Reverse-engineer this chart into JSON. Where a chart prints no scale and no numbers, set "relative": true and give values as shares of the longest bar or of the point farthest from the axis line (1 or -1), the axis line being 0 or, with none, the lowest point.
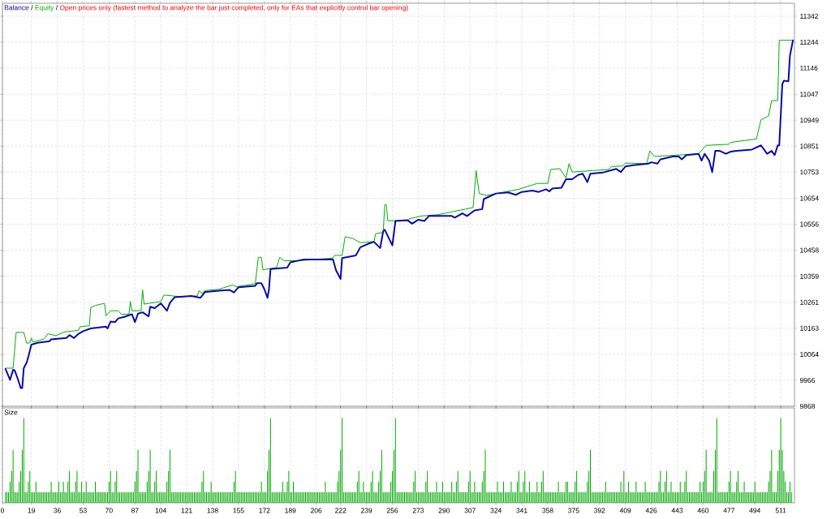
{
  "chart_data": [
    {
      "type": "line",
      "legend": "top left",
      "grid": true,
      "tick_labels": "y",
      "annotations": [
        "/",
        "/",
        "Open prices only (fastest method to analyze the bar just completed, only for EAs that explicitly control bar opening)"
      ],
      "xlim": [
        0,
        520
      ],
      "ylim": [
        9868,
        11391
      ],
      "xticks": [
        0,
        19,
        36,
        53,
        70,
        87,
        104,
        121,
        138,
        155,
        172,
        189,
        206,
        222,
        239,
        256,
        273,
        290,
        307,
        324,
        341,
        358,
        375,
        392,
        409,
        426,
        443,
        460,
        477,
        494,
        511
      ],
      "yticks": [
        9868,
        9966,
        10064,
        10163,
        10261,
        10359,
        10458,
        10556,
        10654,
        10753,
        10851,
        10949,
        11047,
        11146,
        11244,
        11342
      ],
      "series": [
        {
          "name": "Balance",
          "color": "#0a0aa8",
          "x": [
            2,
            5,
            7,
            8,
            10,
            12,
            13,
            14,
            16,
            17,
            19,
            23,
            31,
            32,
            42,
            44,
            47,
            50,
            53,
            58,
            68,
            69,
            71,
            74,
            76,
            80,
            85,
            87,
            89,
            92,
            96,
            97,
            100,
            104,
            108,
            110,
            113,
            124,
            130,
            133,
            142,
            149,
            152,
            155,
            166,
            167,
            170,
            172,
            174,
            175,
            176,
            187,
            189,
            198,
            217,
            219,
            222,
            223,
            232,
            235,
            241,
            244,
            248,
            250,
            251,
            256,
            258,
            266,
            269,
            273,
            277,
            280,
            295,
            297,
            302,
            305,
            310,
            315,
            316,
            324,
            332,
            337,
            341,
            348,
            352,
            357,
            359,
            361,
            367,
            370,
            374,
            378,
            381,
            384,
            386,
            394,
            403,
            406,
            409,
            414,
            424,
            426,
            430,
            432,
            440,
            444,
            446,
            449,
            457,
            459,
            461,
            464,
            466,
            468,
            471,
            475,
            478,
            482,
            492,
            498,
            502,
            505,
            507,
            509,
            510,
            512,
            513,
            516,
            517,
            519
          ],
          "values": [
            10009,
            9968,
            10006,
            10004,
            9973,
            9937,
            9937,
            10012,
            10034,
            10055,
            10101,
            10108,
            10114,
            10121,
            10126,
            10137,
            10126,
            10142,
            10152,
            10162,
            10169,
            10162,
            10188,
            10186,
            10200,
            10206,
            10216,
            10186,
            10218,
            10223,
            10208,
            10244,
            10239,
            10257,
            10229,
            10259,
            10280,
            10285,
            10278,
            10300,
            10305,
            10308,
            10298,
            10318,
            10323,
            10333,
            10333,
            10310,
            10278,
            10310,
            10387,
            10392,
            10412,
            10423,
            10423,
            10382,
            10349,
            10428,
            10438,
            10469,
            10484,
            10489,
            10466,
            10530,
            10535,
            10476,
            10568,
            10571,
            10558,
            10573,
            10568,
            10587,
            10587,
            10581,
            10597,
            10587,
            10608,
            10613,
            10651,
            10672,
            10676,
            10667,
            10678,
            10683,
            10678,
            10688,
            10680,
            10691,
            10694,
            10726,
            10726,
            10742,
            10747,
            10715,
            10747,
            10751,
            10765,
            10753,
            10774,
            10779,
            10785,
            10790,
            10785,
            10801,
            10812,
            10812,
            10801,
            10817,
            10822,
            10796,
            10822,
            10796,
            10753,
            10833,
            10833,
            10822,
            10830,
            10833,
            10838,
            10854,
            10822,
            10833,
            10817,
            10854,
            10854,
            11085,
            11098,
            11096,
            11192,
            11251
          ]
        },
        {
          "name": "Equity",
          "color": "#00b000",
          "x": [
            2,
            7,
            9,
            14,
            16,
            18,
            19,
            20,
            27,
            30,
            35,
            41,
            50,
            51,
            57,
            58,
            61,
            67,
            68,
            71,
            76,
            78,
            83,
            84,
            85,
            91,
            92,
            93,
            104,
            106,
            112,
            117,
            128,
            129,
            131,
            133,
            142,
            151,
            154,
            166,
            168,
            170,
            171,
            180,
            182,
            185,
            195,
            217,
            218,
            223,
            225,
            230,
            235,
            244,
            245,
            250,
            251,
            252,
            253,
            266,
            267,
            275,
            286,
            304,
            309,
            311,
            313,
            318,
            328,
            339,
            351,
            358,
            360,
            366,
            370,
            372,
            374,
            398,
            400,
            407,
            409,
            423,
            425,
            428,
            457,
            462,
            477,
            478,
            495,
            498,
            503,
            505,
            509,
            510,
            519
          ],
          "values": [
            10012,
            10012,
            10147,
            10147,
            10106,
            10108,
            10126,
            10111,
            10121,
            10142,
            10135,
            10149,
            10155,
            10169,
            10172,
            10241,
            10249,
            10257,
            10210,
            10229,
            10229,
            10216,
            10216,
            10264,
            10229,
            10229,
            10308,
            10254,
            10264,
            10288,
            10285,
            10282,
            10285,
            10305,
            10295,
            10305,
            10310,
            10326,
            10320,
            10331,
            10431,
            10431,
            10384,
            10392,
            10431,
            10418,
            10418,
            10428,
            10438,
            10438,
            10509,
            10502,
            10486,
            10491,
            10520,
            10525,
            10630,
            10630,
            10569,
            10569,
            10576,
            10587,
            10592,
            10613,
            10619,
            10758,
            10672,
            10665,
            10676,
            10688,
            10710,
            10710,
            10763,
            10766,
            10731,
            10785,
            10753,
            10763,
            10774,
            10776,
            10787,
            10785,
            10833,
            10812,
            10822,
            10854,
            10858,
            10865,
            10878,
            10951,
            10965,
            11023,
            11023,
            11251,
            11251
          ]
        }
      ]
    },
    {
      "type": "bar",
      "title": "Size",
      "relative": true,
      "grid": "x",
      "tick_labels": "x",
      "color": "#00a800",
      "xlim": [
        0,
        520
      ],
      "xticks": [
        0,
        19,
        36,
        53,
        70,
        87,
        104,
        121,
        138,
        155,
        172,
        189,
        206,
        222,
        239,
        256,
        273,
        290,
        307,
        324,
        341,
        358,
        375,
        392,
        409,
        426,
        443,
        460,
        477,
        494,
        511
      ],
      "x": [
        2,
        3,
        4,
        5,
        6,
        7,
        8,
        9,
        10,
        11,
        12,
        13,
        14,
        15,
        16,
        17,
        18,
        19,
        20,
        21,
        22,
        23,
        24,
        25,
        26,
        27,
        28,
        29,
        30,
        31,
        32,
        33,
        34,
        35,
        36,
        37,
        38,
        39,
        40,
        41,
        42,
        43,
        44,
        45,
        46,
        47,
        48,
        49,
        50,
        51,
        52,
        53,
        54,
        55,
        56,
        57,
        58,
        59,
        60,
        61,
        62,
        63,
        64,
        65,
        66,
        67,
        68,
        69,
        70,
        71,
        72,
        73,
        74,
        75,
        76,
        77,
        78,
        79,
        80,
        81,
        82,
        83,
        84,
        85,
        86,
        87,
        88,
        89,
        90,
        91,
        92,
        93,
        94,
        95,
        96,
        97,
        98,
        99,
        100,
        101,
        102,
        103,
        104,
        105,
        106,
        107,
        108,
        109,
        110,
        111,
        112,
        113,
        114,
        115,
        116,
        117,
        118,
        119,
        120,
        121,
        122,
        123,
        124,
        125,
        126,
        127,
        128,
        129,
        130,
        131,
        132,
        133,
        134,
        135,
        136,
        137,
        138,
        139,
        140,
        141,
        142,
        143,
        144,
        145,
        146,
        147,
        148,
        149,
        150,
        151,
        152,
        153,
        154,
        155,
        156,
        157,
        158,
        159,
        160,
        161,
        162,
        163,
        164,
        165,
        166,
        167,
        168,
        169,
        170,
        171,
        172,
        173,
        174,
        175,
        176,
        177,
        178,
        179,
        180,
        181,
        182,
        183,
        184,
        185,
        186,
        187,
        188,
        189,
        190,
        191,
        192,
        193,
        194,
        195,
        196,
        197,
        198,
        199,
        200,
        201,
        202,
        203,
        204,
        205,
        206,
        207,
        208,
        209,
        210,
        211,
        212,
        213,
        214,
        215,
        216,
        217,
        218,
        219,
        220,
        221,
        222,
        223,
        224,
        225,
        226,
        227,
        228,
        229,
        230,
        231,
        232,
        233,
        234,
        235,
        236,
        237,
        238,
        239,
        240,
        241,
        242,
        243,
        244,
        245,
        246,
        247,
        248,
        249,
        250,
        251,
        252,
        253,
        254,
        255,
        256,
        257,
        258,
        259,
        260,
        261,
        262,
        263,
        264,
        265,
        266,
        267,
        268,
        269,
        270,
        271,
        272,
        273,
        274,
        275,
        276,
        277,
        278,
        279,
        280,
        281,
        282,
        283,
        284,
        285,
        286,
        287,
        288,
        289,
        290,
        291,
        292,
        293,
        294,
        295,
        296,
        297,
        298,
        299,
        300,
        301,
        302,
        303,
        304,
        305,
        306,
        307,
        308,
        309,
        310,
        311,
        312,
        313,
        314,
        315,
        316,
        317,
        318,
        319,
        320,
        321,
        322,
        323,
        324,
        325,
        326,
        327,
        328,
        329,
        330,
        331,
        332,
        333,
        334,
        335,
        336,
        337,
        338,
        339,
        340,
        341,
        342,
        343,
        344,
        345,
        346,
        347,
        348,
        349,
        350,
        351,
        352,
        353,
        354,
        355,
        356,
        357,
        358,
        359,
        360,
        361,
        362,
        363,
        364,
        365,
        366,
        367,
        368,
        369,
        370,
        371,
        372,
        373,
        374,
        375,
        376,
        377,
        378,
        379,
        380,
        381,
        382,
        383,
        384,
        385,
        386,
        387,
        388,
        389,
        390,
        391,
        392,
        393,
        394,
        395,
        396,
        397,
        398,
        399,
        400,
        401,
        402,
        403,
        404,
        405,
        406,
        407,
        408,
        409,
        410,
        411,
        412,
        413,
        414,
        415,
        416,
        417,
        418,
        419,
        420,
        421,
        422,
        423,
        424,
        425,
        426,
        427,
        428,
        429,
        430,
        431,
        432,
        433,
        434,
        435,
        436,
        437,
        438,
        439,
        440,
        441,
        442,
        443,
        444,
        445,
        446,
        447,
        448,
        449,
        450,
        451,
        452,
        453,
        454,
        455,
        456,
        457,
        458,
        459,
        460,
        461,
        462,
        463,
        464,
        465,
        466,
        467,
        468,
        469,
        470,
        471,
        472,
        473,
        474,
        475,
        476,
        477,
        478,
        479,
        480,
        481,
        482,
        483,
        484,
        485,
        486,
        487,
        488,
        489,
        490,
        491,
        492,
        493,
        494,
        495,
        496,
        497,
        498,
        499,
        500,
        501,
        502,
        503,
        504,
        505,
        506,
        507,
        508,
        509,
        510,
        511,
        512,
        513,
        514,
        515,
        516,
        517,
        518
      ],
      "values": [
        0.125,
        0.125,
        0.125,
        0.25,
        0.375,
        0.625,
        0.125,
        0.125,
        0.125,
        0.25,
        0.375,
        0.625,
        1,
        0.125,
        0.125,
        0.25,
        0.375,
        0.125,
        0.125,
        0.125,
        0.25,
        0.125,
        0.125,
        0.125,
        0.125,
        0.125,
        0.125,
        0.125,
        0.125,
        0.125,
        0.25,
        0.125,
        0.125,
        0.125,
        0.125,
        0.25,
        0.125,
        0.125,
        0.25,
        0.125,
        0.125,
        0.25,
        0.375,
        0.125,
        0.125,
        0.125,
        0.25,
        0.375,
        0.125,
        0.125,
        0.25,
        0.125,
        0.125,
        0.25,
        0.125,
        0.125,
        0.125,
        0.125,
        0.125,
        0.25,
        0.125,
        0.125,
        0.125,
        0.125,
        0.125,
        0.125,
        0.125,
        0.125,
        0.25,
        0.375,
        0.125,
        0.125,
        0.25,
        0.375,
        0.125,
        0.125,
        0.125,
        0.125,
        0.125,
        0.125,
        0.125,
        0.125,
        0.125,
        0.125,
        0.125,
        0.25,
        0.375,
        0.625,
        0.125,
        0.125,
        0.125,
        0.125,
        0.125,
        0.25,
        0.375,
        0.625,
        0.125,
        0.125,
        0.25,
        0.375,
        0.125,
        0.125,
        0.125,
        0.125,
        0.125,
        0.125,
        0.25,
        0.375,
        0.625,
        0.125,
        0.125,
        0.125,
        0.125,
        0.125,
        0.125,
        0.125,
        0.125,
        0.125,
        0.125,
        0.125,
        0.125,
        0.125,
        0.125,
        0.125,
        0.125,
        0.125,
        0.125,
        0.125,
        0.125,
        0.25,
        0.375,
        0.125,
        0.125,
        0.125,
        0.125,
        0.25,
        0.125,
        0.125,
        0.125,
        0.125,
        0.125,
        0.125,
        0.125,
        0.125,
        0.125,
        0.125,
        0.125,
        0.125,
        0.125,
        0.125,
        0.25,
        0.375,
        0.125,
        0.125,
        0.125,
        0.125,
        0.125,
        0.125,
        0.125,
        0.125,
        0.125,
        0.125,
        0.125,
        0.125,
        0.125,
        0.125,
        0.125,
        0.125,
        0.25,
        0.125,
        0.125,
        0.125,
        0.375,
        0.625,
        1,
        0.125,
        0.125,
        0.125,
        0.125,
        0.125,
        0.125,
        0.125,
        0.25,
        0.125,
        0.125,
        0.25,
        0.375,
        0.125,
        0.125,
        0.25,
        0.125,
        0.125,
        0.125,
        0.125,
        0.125,
        0.125,
        0.125,
        0.125,
        0.125,
        0.125,
        0.125,
        0.125,
        0.125,
        0.125,
        0.125,
        0.125,
        0.125,
        0.125,
        0.125,
        0.125,
        0.25,
        0.125,
        0.125,
        0.125,
        0.125,
        0.125,
        0.125,
        0.125,
        0.25,
        0.375,
        0.625,
        1,
        0.125,
        0.125,
        0.125,
        0.125,
        0.125,
        0.125,
        0.125,
        0.125,
        0.125,
        0.25,
        0.375,
        0.125,
        0.125,
        0.25,
        0.125,
        0.125,
        0.125,
        0.125,
        0.25,
        0.375,
        0.125,
        0.125,
        0.125,
        0.25,
        0.375,
        0.625,
        0.125,
        0.125,
        0.125,
        0.125,
        0.125,
        0.25,
        0.375,
        0.625,
        1,
        0.125,
        0.125,
        0.125,
        0.125,
        0.125,
        0.125,
        0.125,
        0.125,
        0.125,
        0.125,
        0.125,
        0.25,
        0.375,
        0.125,
        0.125,
        0.125,
        0.125,
        0.125,
        0.125,
        0.25,
        0.375,
        0.125,
        0.125,
        0.125,
        0.125,
        0.125,
        0.25,
        0.125,
        0.125,
        0.125,
        0.25,
        0.125,
        0.125,
        0.125,
        0.125,
        0.125,
        0.25,
        0.125,
        0.125,
        0.25,
        0.375,
        0.125,
        0.125,
        0.125,
        0.125,
        0.125,
        0.125,
        0.25,
        0.375,
        0.125,
        0.125,
        0.25,
        0.125,
        0.125,
        0.125,
        0.125,
        0.25,
        0.375,
        0.625,
        0.125,
        0.125,
        0.125,
        0.125,
        0.125,
        0.125,
        0.125,
        0.25,
        0.125,
        0.125,
        0.125,
        0.25,
        0.125,
        0.125,
        0.125,
        0.125,
        0.25,
        0.125,
        0.125,
        0.125,
        0.25,
        0.375,
        0.125,
        0.125,
        0.25,
        0.375,
        0.125,
        0.125,
        0.25,
        0.125,
        0.125,
        0.125,
        0.125,
        0.25,
        0.125,
        0.125,
        0.25,
        0.375,
        0.125,
        0.125,
        0.125,
        0.125,
        0.125,
        0.125,
        0.125,
        0.125,
        0.125,
        0.25,
        0.125,
        0.125,
        0.125,
        0.125,
        0.25,
        0.25,
        0.125,
        0.125,
        0.125,
        0.125,
        0.25,
        0.375,
        0.125,
        0.125,
        0.125,
        0.125,
        0.125,
        0.125,
        0.25,
        0.375,
        0.625,
        0.125,
        0.125,
        0.125,
        0.125,
        0.125,
        0.125,
        0.125,
        0.125,
        0.125,
        0.25,
        0.125,
        0.125,
        0.125,
        0.125,
        0.125,
        0.125,
        0.125,
        0.125,
        0.125,
        0.25,
        0.125,
        0.375,
        0.125,
        0.125,
        0.25,
        0.125,
        0.125,
        0.125,
        0.125,
        0.25,
        0.125,
        0.125,
        0.125,
        0.125,
        0.125,
        0.25,
        0.125,
        0.125,
        0.125,
        0.125,
        0.125,
        0.125,
        0.125,
        0.125,
        0.25,
        0.375,
        0.125,
        0.125,
        0.25,
        0.375,
        0.125,
        0.125,
        0.25,
        0.125,
        0.125,
        0.125,
        0.125,
        0.125,
        0.25,
        0.125,
        0.125,
        0.25,
        0.375,
        0.125,
        0.125,
        0.125,
        0.125,
        0.125,
        0.125,
        0.125,
        0.125,
        0.25,
        0.125,
        0.25,
        0.375,
        0.625,
        0.125,
        0.125,
        0.125,
        0.125,
        0.375,
        0.625,
        1,
        0.125,
        0.125,
        0.125,
        0.125,
        0.125,
        0.125,
        0.125,
        0.25,
        0.375,
        0.125,
        0.125,
        0.125,
        0.25,
        0.375,
        0.125,
        0.125,
        0.125,
        0.25,
        0.125,
        0.125,
        0.125,
        0.125,
        0.125,
        0.125,
        0.25,
        0.125,
        0.125,
        0.125,
        0.125,
        0.125,
        0.125,
        0.125,
        0.125,
        0.25,
        0.375,
        0.625,
        0.125,
        0.125,
        0.125,
        0.375,
        0.625,
        1,
        0.625,
        0.375,
        0.25,
        0.125,
        0.125,
        0.25,
        0.125
      ]
    }
  ]
}
